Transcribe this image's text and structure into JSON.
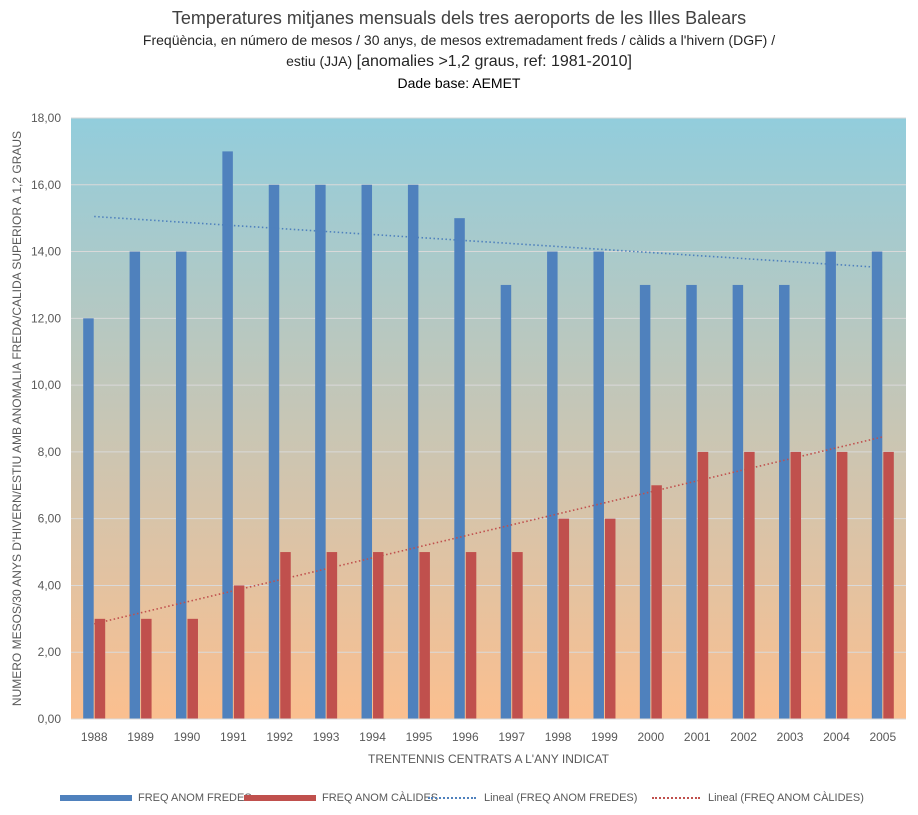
{
  "chart_data": {
    "type": "bar",
    "title_line1": "Temperatures  mitjanes mensuals dels tres aeroports de les Illes Balears",
    "title_line2": "Freqüència, en número de mesos / 30 anys, de mesos extremadament freds / càlids a l'hivern (DGF) /",
    "title_line3_small": "estiu (JJA)",
    "title_line3_big": " [anomalies >1,2 graus, ref: 1981-2010]",
    "title_line4": "Dade base: AEMET",
    "xlabel": "TRENTENNIS CENTRATS A L'ANY INDICAT",
    "ylabel": "NUMERO MESOS/30 ANYS D'HIVERN/ESTIU AMB ANOMALIA FREDA/CALIDA SUPERIOR A 1,2 GRAUS",
    "ylim": [
      0,
      18
    ],
    "yticks": [
      "0,00",
      "2,00",
      "4,00",
      "6,00",
      "8,00",
      "10,00",
      "12,00",
      "14,00",
      "16,00",
      "18,00"
    ],
    "categories": [
      "1988",
      "1989",
      "1990",
      "1991",
      "1992",
      "1993",
      "1994",
      "1995",
      "1996",
      "1997",
      "1998",
      "1999",
      "2000",
      "2001",
      "2002",
      "2003",
      "2004",
      "2005"
    ],
    "series": [
      {
        "name": "FREQ ANOM FREDES",
        "color": "#4f81bd",
        "values": [
          12,
          14,
          14,
          17,
          16,
          16,
          16,
          16,
          15,
          13,
          14,
          14,
          13,
          13,
          13,
          13,
          14,
          14
        ]
      },
      {
        "name": "FREQ ANOM CÀLIDES",
        "color": "#c0504d",
        "values": [
          3,
          3,
          3,
          4,
          5,
          5,
          5,
          5,
          5,
          5,
          6,
          6,
          7,
          8,
          8,
          8,
          8,
          8
        ]
      }
    ],
    "trendlines": [
      {
        "name": "Lineal  (FREQ ANOM FREDES)",
        "color": "#4f81bd",
        "start": 15.05,
        "end": 13.52
      },
      {
        "name": "Lineal  (FREQ ANOM CÀLIDES)",
        "color": "#c0504d",
        "start": 2.85,
        "end": 8.45
      }
    ],
    "background_gradient": [
      "#92cddc",
      "#fbbf8f"
    ],
    "grid": true,
    "legend_position": "bottom"
  }
}
